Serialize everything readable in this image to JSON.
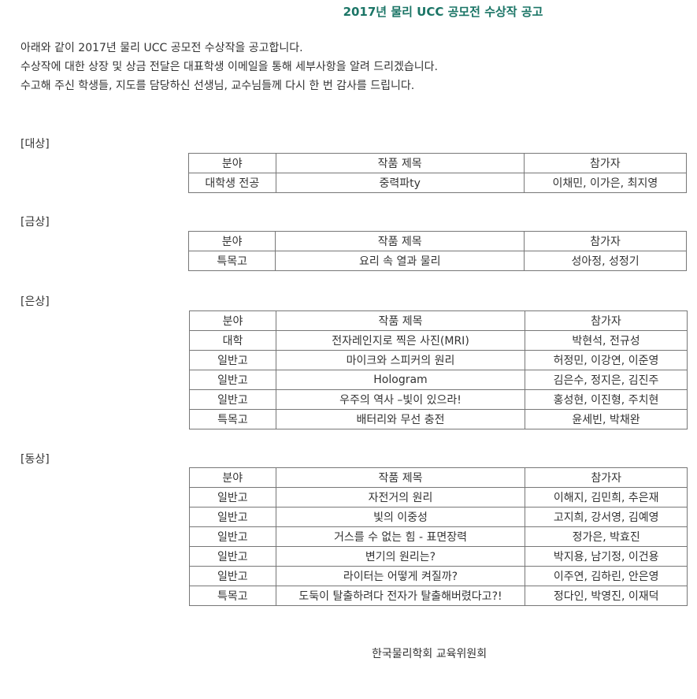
{
  "title": "2017년 물리 UCC 공모전 수상작 공고",
  "intro": [
    "아래와 같이 2017년 물리 UCC 공모전 수상작을 공고합니다.",
    "수상작에 대한 상장 및 상금 전달은 대표학생 이메일을 통해 세부사항을 알려 드리겠습니다.",
    "수고해 주신 학생들, 지도를 담당하신 선생님, 교수님들께 다시 한 번 감사를 드립니다."
  ],
  "headers": [
    "분야",
    "작품 제목",
    "참가자"
  ],
  "sections": [
    {
      "label": "[대상]",
      "rows": [
        [
          "대학생 전공",
          "중력파ty",
          "이채민, 이가은, 최지영"
        ]
      ]
    },
    {
      "label": "[금상]",
      "rows": [
        [
          "특목고",
          "요리 속 열과 물리",
          "성아정, 성정기"
        ]
      ]
    },
    {
      "label": "[은상]",
      "rows": [
        [
          "대학",
          "전자레인지로 찍은 사진(MRI)",
          "박현석, 전규성"
        ],
        [
          "일반고",
          "마이크와 스피커의 원리",
          "허정민, 이강연, 이준영"
        ],
        [
          "일반고",
          "Hologram",
          "김은수, 정지은, 김진주"
        ],
        [
          "일반고",
          "우주의 역사 –빛이 있으라!",
          "홍성현, 이진형, 주치현"
        ],
        [
          "특목고",
          "배터리와 무선 충전",
          "윤세빈, 박채완"
        ]
      ]
    },
    {
      "label": "[동상]",
      "rows": [
        [
          "일반고",
          "자전거의 원리",
          "이해지, 김민희, 추은재"
        ],
        [
          "일반고",
          "빛의 이중성",
          "고지희, 강서영, 김예영"
        ],
        [
          "일반고",
          "거스를 수 없는 힘 - 표면장력",
          "정가은, 박효진"
        ],
        [
          "일반고",
          "변기의 원리는?",
          "박지용, 남기정, 이건용"
        ],
        [
          "일반고",
          "라이터는 어떻게 켜질까?",
          "이주연, 김하린, 안은영"
        ],
        [
          "특목고",
          "도둑이 탈출하려다 전자가 탈출해버렸다고?!",
          "정다인, 박영진, 이재덕"
        ]
      ]
    }
  ],
  "footer": "한국물리학회 교육위원회",
  "colors": {
    "title": "#1b7566"
  }
}
